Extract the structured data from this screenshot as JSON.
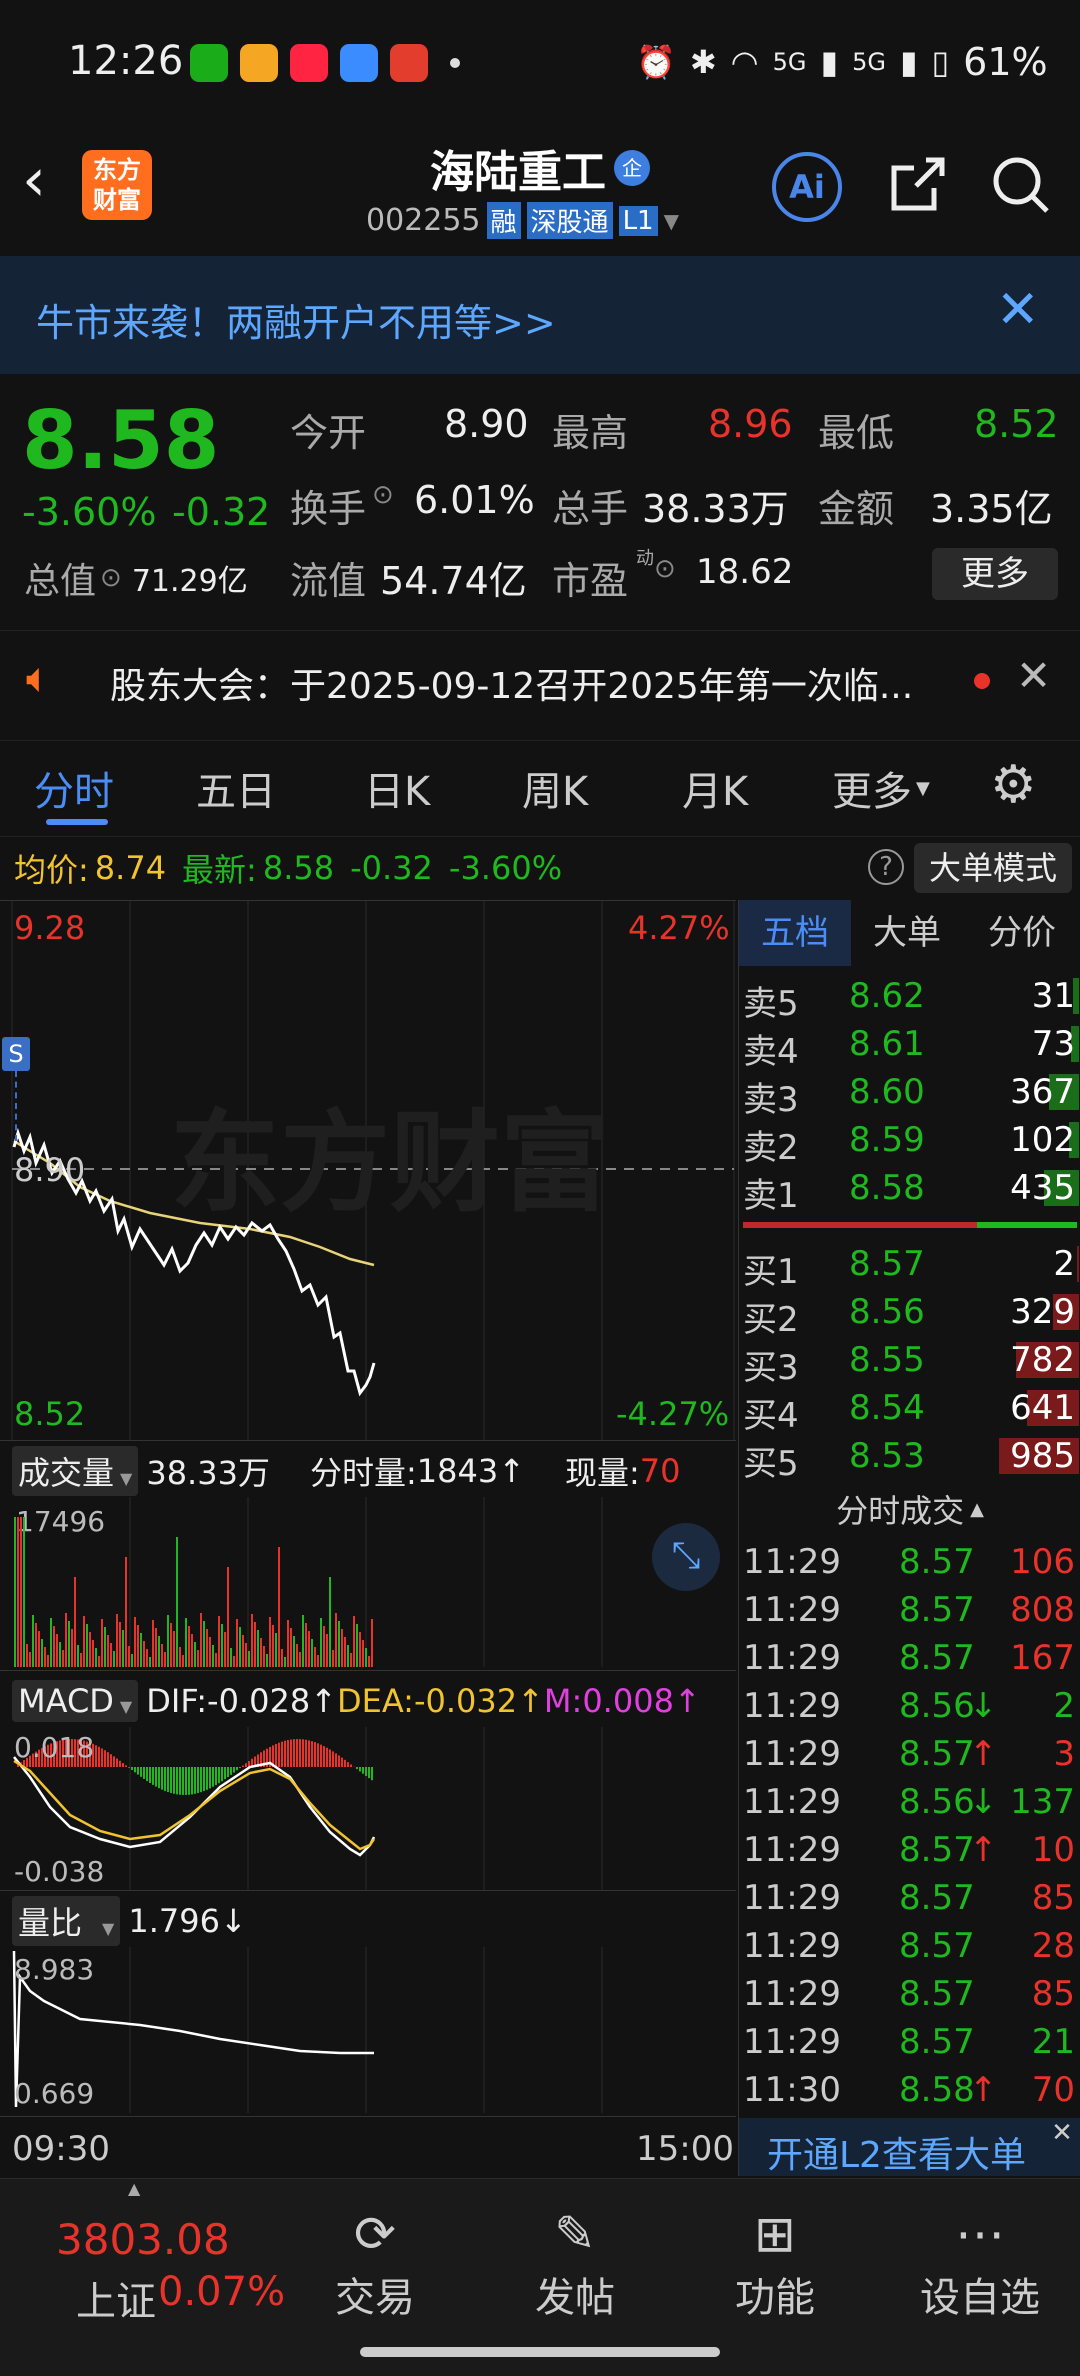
{
  "status": {
    "time": "12:26",
    "battery": "61%",
    "signal1": "5G",
    "signal2": "5G"
  },
  "header": {
    "name": "海陆重工",
    "name_badge": "企",
    "code": "002255",
    "tags": [
      "融",
      "深股通",
      "L1"
    ],
    "logo": "东方\n财富",
    "ai_label": "Ai"
  },
  "banner": {
    "text": "牛市来袭！两融开户不用等>>"
  },
  "quote": {
    "price": "8.58",
    "change_pct": "-3.60%",
    "change": "-0.32",
    "open_label": "今开",
    "open": "8.90",
    "high_label": "最高",
    "high": "8.96",
    "low_label": "最低",
    "low": "8.52",
    "turnover_label": "换手",
    "turnover": "6.01%",
    "volume_label": "总手",
    "volume": "38.33万",
    "amount_label": "金额",
    "amount": "3.35亿",
    "mcap_label": "总值",
    "mcap": "71.29亿",
    "float_label": "流值",
    "float": "54.74亿",
    "pe_label": "市盈",
    "pe_sup": "动",
    "pe": "18.62",
    "more": "更多"
  },
  "notice": {
    "text": "股东大会：于2025-09-12召开2025年第一次临..."
  },
  "tabs": [
    "分时",
    "五日",
    "日K",
    "周K",
    "月K",
    "更多"
  ],
  "info_bar": {
    "avg_label": "均价:",
    "avg": "8.74",
    "latest_label": "最新:",
    "latest": "8.58",
    "chg": "-0.32",
    "pct": "-3.60%",
    "mode": "大单模式"
  },
  "chart": {
    "y_top": "9.28",
    "y_bottom": "8.52",
    "pct_top": "4.27%",
    "pct_bottom": "-4.27%",
    "ref": "8.90",
    "watermark": "东方财富",
    "marker": "S",
    "time_start": "09:30",
    "time_end": "15:00"
  },
  "volume": {
    "label": "成交量",
    "total": "38.33万",
    "fs_label": "分时量:",
    "fs": "1843",
    "now_label": "现量:",
    "now": "70",
    "max": "17496"
  },
  "macd": {
    "label": "MACD",
    "dif": "DIF:-0.028",
    "dea": "DEA:-0.032",
    "m": "M:0.008",
    "top": "0.018",
    "bottom": "-0.038"
  },
  "lb": {
    "label": "量比",
    "value": "1.796",
    "top": "8.983",
    "bottom": "0.669"
  },
  "book": {
    "tabs": [
      "五档",
      "大单",
      "分价"
    ],
    "asks": [
      {
        "label": "卖5",
        "price": "8.62",
        "vol": "31",
        "ratio": 0.08
      },
      {
        "label": "卖4",
        "price": "8.61",
        "vol": "73",
        "ratio": 0.1
      },
      {
        "label": "卖3",
        "price": "8.60",
        "vol": "367",
        "ratio": 0.37
      },
      {
        "label": "卖2",
        "price": "8.59",
        "vol": "102",
        "ratio": 0.12
      },
      {
        "label": "卖1",
        "price": "8.58",
        "vol": "435",
        "ratio": 0.44
      }
    ],
    "bids": [
      {
        "label": "买1",
        "price": "8.57",
        "vol": "2",
        "ratio": 0.02
      },
      {
        "label": "买2",
        "price": "8.56",
        "vol": "329",
        "ratio": 0.33
      },
      {
        "label": "买3",
        "price": "8.55",
        "vol": "782",
        "ratio": 0.79
      },
      {
        "label": "买4",
        "price": "8.54",
        "vol": "641",
        "ratio": 0.65
      },
      {
        "label": "买5",
        "price": "8.53",
        "vol": "985",
        "ratio": 1.0
      }
    ],
    "ticks_label": "分时成交",
    "ticks": [
      {
        "t": "11:29",
        "p": "8.57",
        "arrow": "",
        "v": "106",
        "c": "red"
      },
      {
        "t": "11:29",
        "p": "8.57",
        "arrow": "",
        "v": "808",
        "c": "red"
      },
      {
        "t": "11:29",
        "p": "8.57",
        "arrow": "",
        "v": "167",
        "c": "red"
      },
      {
        "t": "11:29",
        "p": "8.56",
        "arrow": "↓",
        "v": "2",
        "c": "green"
      },
      {
        "t": "11:29",
        "p": "8.57",
        "arrow": "↑",
        "v": "3",
        "c": "red"
      },
      {
        "t": "11:29",
        "p": "8.56",
        "arrow": "↓",
        "v": "137",
        "c": "green"
      },
      {
        "t": "11:29",
        "p": "8.57",
        "arrow": "↑",
        "v": "10",
        "c": "red"
      },
      {
        "t": "11:29",
        "p": "8.57",
        "arrow": "",
        "v": "85",
        "c": "red"
      },
      {
        "t": "11:29",
        "p": "8.57",
        "arrow": "",
        "v": "28",
        "c": "red"
      },
      {
        "t": "11:29",
        "p": "8.57",
        "arrow": "",
        "v": "85",
        "c": "red"
      },
      {
        "t": "11:29",
        "p": "8.57",
        "arrow": "",
        "v": "21",
        "c": "green"
      },
      {
        "t": "11:30",
        "p": "8.58",
        "arrow": "↑",
        "v": "70",
        "c": "red"
      }
    ],
    "l2": "开通L2查看大单"
  },
  "bottom": {
    "index_value": "3803.08",
    "index_name": "上证",
    "index_pct": "0.07%",
    "items": [
      "交易",
      "发帖",
      "功能",
      "设自选"
    ]
  }
}
